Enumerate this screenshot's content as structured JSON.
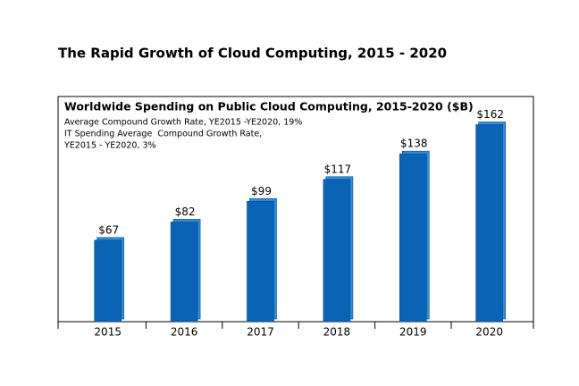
{
  "chart_data": {
    "type": "bar",
    "title": "The Rapid Growth of Cloud Computing, 2015 - 2020",
    "subtitle": "Worldwide Spending on Public Cloud Computing, 2015-2020 ($B)",
    "annotations": [
      "Average Compound Growth Rate, YE2015 -YE2020, 19%",
      "IT Spending Average  Compound Growth Rate,",
      "YE2015 - YE2020, 3%"
    ],
    "categories": [
      "2015",
      "2016",
      "2017",
      "2018",
      "2019",
      "2020"
    ],
    "values": [
      67,
      82,
      99,
      117,
      138,
      162
    ],
    "value_labels": [
      "$67",
      "$82",
      "$99",
      "$117",
      "$138",
      "$162"
    ],
    "color": "#0a63b5",
    "ylim": [
      0,
      180
    ]
  }
}
